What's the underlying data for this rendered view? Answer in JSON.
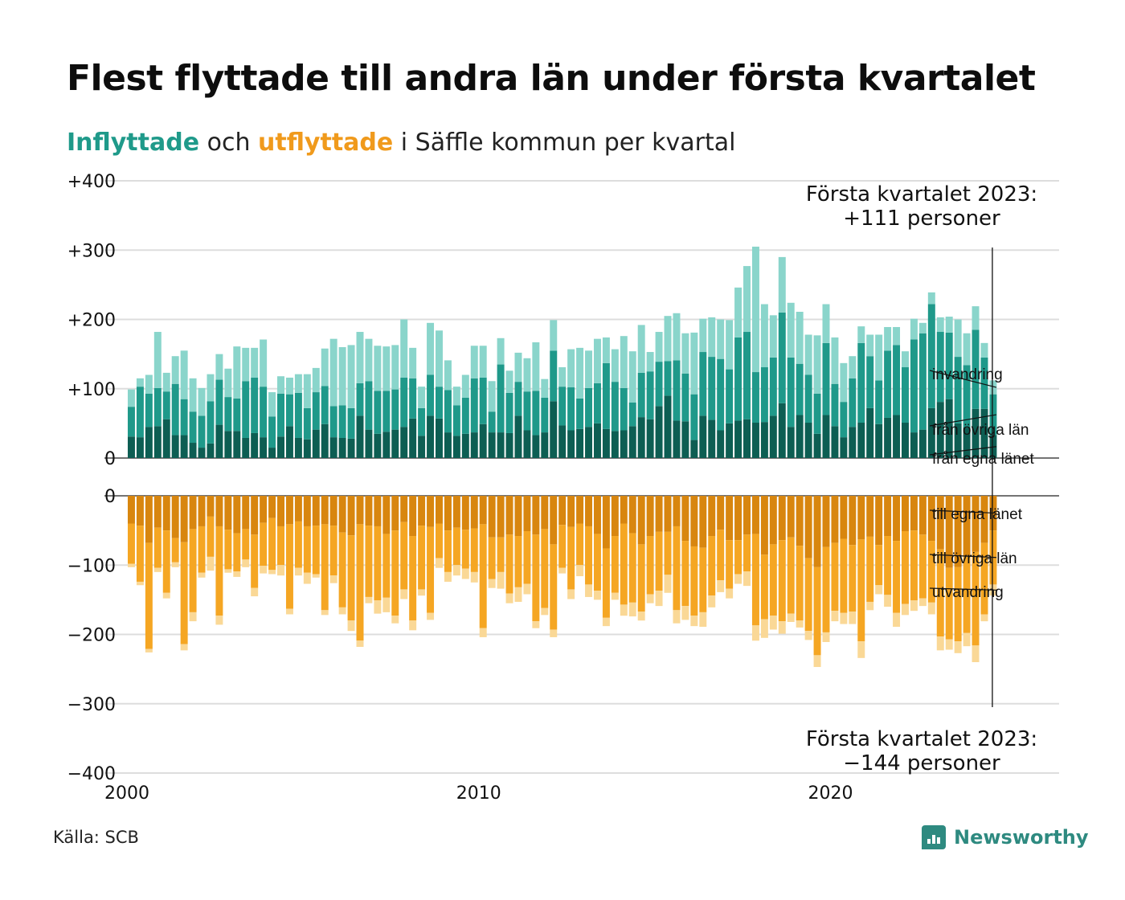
{
  "title": "Flest flyttade till andra län under första kvartalet",
  "subtitle": {
    "in_word": "Inflyttade",
    "middle": " och ",
    "out_word": "utflyttade",
    "rest": " i Säffle kommun per kvartal"
  },
  "source": "Källa: SCB",
  "logo": {
    "text": "Newsworthy",
    "icon": "newsworthy-logo-icon"
  },
  "colors": {
    "in_own": "#0d5e53",
    "in_other": "#1f998a",
    "in_immig": "#8ad5cb",
    "out_own": "#d8860f",
    "out_other": "#f5a623",
    "out_emig": "#fad896",
    "grid": "#dddddd",
    "axis": "#222222"
  },
  "chart_data": {
    "type": "bar",
    "stacked": true,
    "x_start": 2000,
    "x_ticks": [
      "2000",
      "2010",
      "2020"
    ],
    "xlim": [
      2000,
      2026.5
    ],
    "top_panel": {
      "ylim": [
        0,
        400
      ],
      "y_ticks": [
        "0",
        "+100",
        "+200",
        "+300",
        "+400"
      ],
      "series": [
        {
          "name": "från egna länet",
          "values": [
            31,
            30,
            45,
            46,
            56,
            33,
            33,
            22,
            15,
            21,
            48,
            39,
            39,
            29,
            36,
            30,
            15,
            31,
            46,
            29,
            27,
            41,
            49,
            30,
            29,
            28,
            61,
            41,
            35,
            38,
            41,
            45,
            57,
            32,
            61,
            57,
            37,
            32,
            35,
            37,
            49,
            37,
            37,
            36,
            61,
            40,
            33,
            37,
            82,
            47,
            40,
            42,
            45,
            50,
            42,
            39,
            40,
            46,
            59,
            56,
            75,
            90,
            54,
            53,
            26,
            61,
            55,
            40,
            50,
            54,
            56,
            51,
            52,
            61,
            79,
            45,
            62,
            51,
            35,
            62,
            46,
            30,
            45,
            51,
            72,
            49,
            58,
            62,
            51,
            37,
            41,
            72,
            81,
            85,
            50,
            44,
            71,
            71,
            33
          ]
        },
        {
          "name": "från övriga län",
          "values": [
            43,
            73,
            48,
            55,
            40,
            74,
            52,
            45,
            46,
            61,
            65,
            49,
            47,
            82,
            80,
            73,
            45,
            62,
            46,
            65,
            45,
            54,
            55,
            45,
            47,
            44,
            47,
            70,
            62,
            59,
            58,
            71,
            58,
            40,
            59,
            46,
            61,
            44,
            52,
            78,
            67,
            30,
            98,
            58,
            49,
            56,
            64,
            50,
            73,
            56,
            62,
            44,
            56,
            58,
            95,
            71,
            61,
            34,
            64,
            69,
            64,
            50,
            87,
            69,
            66,
            92,
            91,
            103,
            78,
            120,
            126,
            73,
            79,
            84,
            131,
            100,
            74,
            69,
            58,
            104,
            61,
            51,
            70,
            115,
            75,
            63,
            97,
            101,
            80,
            134,
            139,
            150,
            101,
            96,
            96,
            90,
            114,
            74,
            59
          ]
        },
        {
          "name": "invandring",
          "values": [
            25,
            12,
            27,
            81,
            27,
            40,
            70,
            48,
            40,
            39,
            37,
            41,
            75,
            48,
            43,
            68,
            35,
            25,
            24,
            27,
            49,
            35,
            54,
            97,
            84,
            91,
            74,
            61,
            65,
            64,
            64,
            84,
            44,
            31,
            75,
            81,
            43,
            27,
            33,
            47,
            46,
            44,
            38,
            32,
            42,
            48,
            70,
            27,
            44,
            28,
            55,
            73,
            54,
            64,
            37,
            47,
            75,
            74,
            69,
            28,
            43,
            65,
            68,
            58,
            89,
            48,
            57,
            57,
            71,
            72,
            95,
            181,
            91,
            61,
            80,
            79,
            75,
            58,
            84,
            56,
            67,
            56,
            32,
            24,
            31,
            66,
            34,
            26,
            23,
            30,
            15,
            17,
            21,
            23,
            54,
            46,
            34,
            21,
            20
          ]
        }
      ]
    },
    "bottom_panel": {
      "ylim": [
        -400,
        0
      ],
      "y_ticks": [
        "0",
        "−100",
        "−200",
        "−300",
        "−400"
      ],
      "series": [
        {
          "name": "till egna länet",
          "values": [
            -40,
            -43,
            -68,
            -46,
            -50,
            -61,
            -67,
            -48,
            -44,
            -30,
            -44,
            -49,
            -54,
            -48,
            -56,
            -39,
            -32,
            -44,
            -41,
            -37,
            -44,
            -43,
            -41,
            -43,
            -53,
            -57,
            -41,
            -43,
            -44,
            -55,
            -50,
            -38,
            -58,
            -43,
            -45,
            -40,
            -50,
            -46,
            -49,
            -47,
            -41,
            -60,
            -60,
            -56,
            -58,
            -51,
            -56,
            -48,
            -70,
            -42,
            -45,
            -40,
            -44,
            -55,
            -76,
            -58,
            -40,
            -54,
            -70,
            -58,
            -52,
            -52,
            -44,
            -65,
            -73,
            -75,
            -58,
            -49,
            -64,
            -64,
            -56,
            -55,
            -85,
            -70,
            -64,
            -60,
            -72,
            -90,
            -103,
            -74,
            -68,
            -62,
            -71,
            -63,
            -59,
            -71,
            -58,
            -65,
            -51,
            -50,
            -56,
            -65,
            -77,
            -104,
            -103,
            -88,
            -81,
            -68,
            -50
          ]
        },
        {
          "name": "till övriga län",
          "values": [
            -58,
            -81,
            -153,
            -58,
            -90,
            -35,
            -147,
            -120,
            -67,
            -58,
            -129,
            -57,
            -55,
            -44,
            -77,
            -62,
            -75,
            -56,
            -122,
            -67,
            -67,
            -70,
            -124,
            -72,
            -108,
            -123,
            -168,
            -103,
            -107,
            -92,
            -123,
            -97,
            -122,
            -92,
            -124,
            -50,
            -60,
            -54,
            -56,
            -63,
            -150,
            -60,
            -50,
            -85,
            -74,
            -76,
            -125,
            -114,
            -123,
            -62,
            -90,
            -60,
            -84,
            -82,
            -100,
            -82,
            -117,
            -100,
            -97,
            -84,
            -85,
            -62,
            -121,
            -94,
            -100,
            -93,
            -86,
            -73,
            -70,
            -49,
            -53,
            -132,
            -93,
            -103,
            -117,
            -110,
            -108,
            -105,
            -127,
            -123,
            -98,
            -107,
            -96,
            -147,
            -94,
            -58,
            -85,
            -104,
            -105,
            -101,
            -92,
            -89,
            -126,
            -103,
            -107,
            -110,
            -135,
            -103,
            -78
          ]
        },
        {
          "name": "utvandring",
          "values": [
            -5,
            -5,
            -5,
            -6,
            -8,
            -7,
            -9,
            -13,
            -7,
            -20,
            -13,
            -5,
            -8,
            -11,
            -12,
            -11,
            -6,
            -15,
            -8,
            -11,
            -16,
            -5,
            -7,
            -11,
            -10,
            -15,
            -9,
            -9,
            -19,
            -21,
            -11,
            -14,
            -14,
            -9,
            -10,
            -14,
            -14,
            -15,
            -15,
            -15,
            -13,
            -13,
            -24,
            -14,
            -21,
            -15,
            -10,
            -10,
            -11,
            -8,
            -14,
            -16,
            -18,
            -13,
            -12,
            -10,
            -16,
            -20,
            -13,
            -13,
            -22,
            -26,
            -19,
            -20,
            -15,
            -21,
            -17,
            -17,
            -14,
            -14,
            -21,
            -22,
            -27,
            -20,
            -18,
            -12,
            -10,
            -13,
            -17,
            -14,
            -15,
            -16,
            -18,
            -24,
            -12,
            -13,
            -17,
            -20,
            -16,
            -15,
            -11,
            -17,
            -20,
            -15,
            -17,
            -19,
            -24,
            -10,
            -16
          ]
        }
      ]
    },
    "annotations": [
      {
        "text": "Första kvartalet 2023:",
        "line2": "+111 personer",
        "panel": "top"
      },
      {
        "text": "Första kvartalet 2023:",
        "line2": "−144 personer",
        "panel": "bottom"
      }
    ],
    "end_labels": {
      "top": [
        "invandring",
        "från övriga län",
        "från egna länet"
      ],
      "bottom": [
        "till egna länet",
        "till övriga län",
        "utvandring"
      ]
    }
  }
}
